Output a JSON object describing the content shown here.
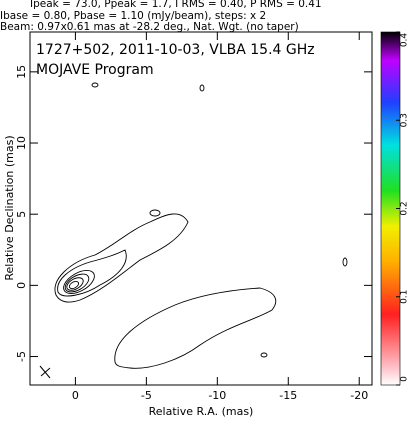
{
  "chart_data": {
    "type": "contour",
    "header": [
      "Ipeak = 73.0, Ppeak = 1.7, I RMS = 0.40, P RMS = 0.41",
      "Ibase = 0.80, Pbase = 1.10 (mJy/beam), steps: x 2",
      "Beam: 0.97x0.61 mas at -28.2 deg., Nat. Wgt. (no taper)"
    ],
    "title": "1727+502, 2011-10-03, VLBA 15.4 GHz",
    "subtitle": "MOJAVE Program",
    "x_label": "Relative R.A. (mas)",
    "y_label": "Relative Declination (mas)",
    "xlim": [
      3.2,
      -20.9
    ],
    "xticks": [
      0,
      -5,
      -10,
      -15,
      -20
    ],
    "ylim": [
      -7,
      17.8
    ],
    "yticks": [
      -5,
      0,
      5,
      10,
      15
    ],
    "colorbar": {
      "lim": [
        0,
        0.4
      ],
      "ticks": [
        0,
        0.1,
        0.2,
        0.3,
        0.4
      ]
    }
  }
}
